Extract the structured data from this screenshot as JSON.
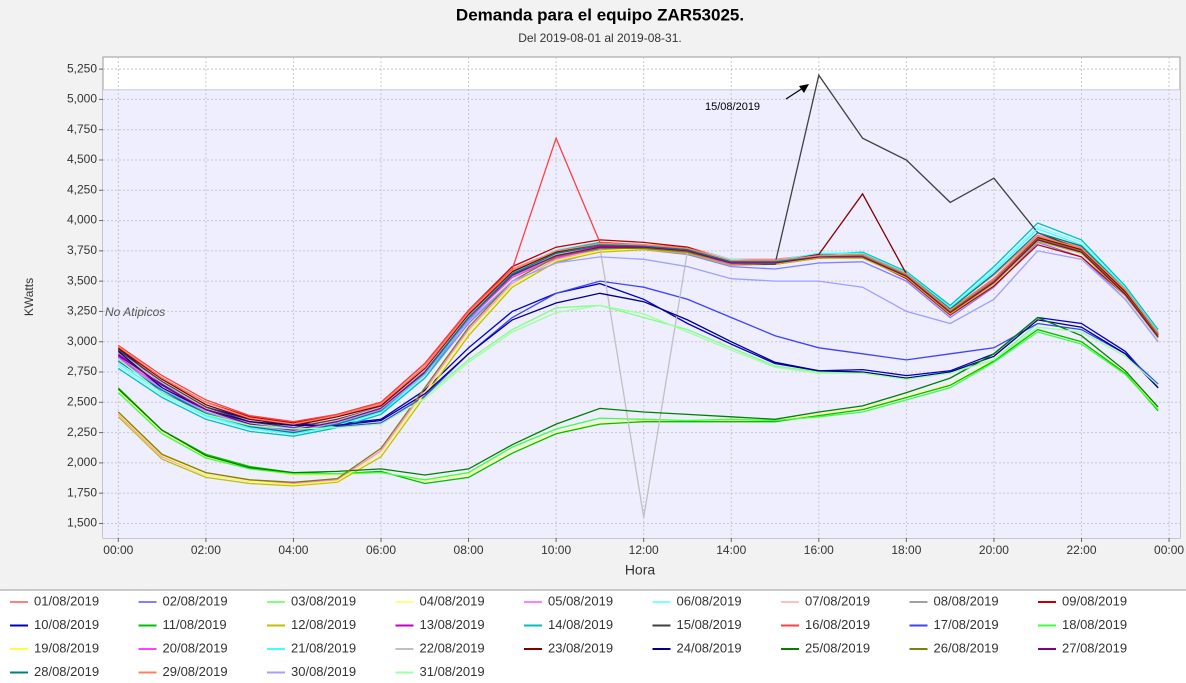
{
  "chart_data": {
    "type": "line",
    "title": "Demanda para el equipo ZAR53025.",
    "subtitle": "Del 2019-08-01 al 2019-08-31.",
    "x_label": "Hora",
    "y_label": "KWatts",
    "plot_label": "No Atipicos",
    "annotation": "15/08/2019",
    "grid": true,
    "log_scale": false,
    "shaded_max": 5080,
    "xlim": [
      -0.35,
      24.25
    ],
    "ylim": [
      1380,
      5350
    ],
    "xticks": [
      {
        "value": 0,
        "label": "00:00"
      },
      {
        "value": 2,
        "label": "02:00"
      },
      {
        "value": 4,
        "label": "04:00"
      },
      {
        "value": 6,
        "label": "06:00"
      },
      {
        "value": 8,
        "label": "08:00"
      },
      {
        "value": 10,
        "label": "10:00"
      },
      {
        "value": 12,
        "label": "12:00"
      },
      {
        "value": 14,
        "label": "14:00"
      },
      {
        "value": 16,
        "label": "16:00"
      },
      {
        "value": 18,
        "label": "18:00"
      },
      {
        "value": 20,
        "label": "20:00"
      },
      {
        "value": 22,
        "label": "22:00"
      },
      {
        "value": 24,
        "label": "00:00"
      }
    ],
    "yticks": [
      {
        "value": 1500,
        "label": "1,500"
      },
      {
        "value": 1750,
        "label": "1,750"
      },
      {
        "value": 2000,
        "label": "2,000"
      },
      {
        "value": 2250,
        "label": "2,250"
      },
      {
        "value": 2500,
        "label": "2,500"
      },
      {
        "value": 2750,
        "label": "2,750"
      },
      {
        "value": 3000,
        "label": "3,000"
      },
      {
        "value": 3250,
        "label": "3,250"
      },
      {
        "value": 3500,
        "label": "3,500"
      },
      {
        "value": 3750,
        "label": "3,750"
      },
      {
        "value": 4000,
        "label": "4,000"
      },
      {
        "value": 4250,
        "label": "4,250"
      },
      {
        "value": 4500,
        "label": "4,500"
      },
      {
        "value": 4750,
        "label": "4,750"
      },
      {
        "value": 5000,
        "label": "5,000"
      },
      {
        "value": 5250,
        "label": "5,250"
      }
    ],
    "x": [
      0,
      1,
      2,
      3,
      4,
      5,
      6,
      7,
      8,
      9,
      10,
      11,
      12,
      13,
      14,
      15,
      16,
      17,
      18,
      19,
      20,
      21,
      22,
      23,
      23.75
    ],
    "series": [
      {
        "name": "01/08/2019",
        "color": "#ff8080",
        "values": [
          2950,
          2680,
          2480,
          2360,
          2300,
          2380,
          2480,
          2800,
          3250,
          3600,
          3750,
          3800,
          3800,
          3780,
          3680,
          3680,
          3720,
          3730,
          3580,
          3280,
          3550,
          3880,
          3780,
          3420,
          3080
        ]
      },
      {
        "name": "02/08/2019",
        "color": "#8080ff",
        "values": [
          2880,
          2620,
          2420,
          2300,
          2250,
          2320,
          2420,
          2700,
          3150,
          3500,
          3650,
          3750,
          3760,
          3720,
          3620,
          3600,
          3650,
          3660,
          3500,
          3200,
          3450,
          3820,
          3700,
          3350,
          3000
        ]
      },
      {
        "name": "03/08/2019",
        "color": "#80ff80",
        "values": [
          2900,
          2600,
          2420,
          2330,
          2300,
          2300,
          2330,
          2550,
          2850,
          3100,
          3280,
          3300,
          3200,
          3100,
          2950,
          2800,
          2750,
          2750,
          2700,
          2750,
          2850,
          3150,
          3100,
          2900,
          2650
        ]
      },
      {
        "name": "04/08/2019",
        "color": "#ffff80",
        "values": [
          2600,
          2250,
          2050,
          1950,
          1900,
          1900,
          1920,
          1850,
          1900,
          2100,
          2250,
          2330,
          2350,
          2350,
          2350,
          2350,
          2400,
          2450,
          2550,
          2650,
          2850,
          3100,
          3000,
          2750,
          2450
        ]
      },
      {
        "name": "05/08/2019",
        "color": "#ff80ff",
        "values": [
          2400,
          2050,
          1900,
          1850,
          1830,
          1860,
          2100,
          2600,
          3100,
          3480,
          3680,
          3750,
          3760,
          3730,
          3640,
          3640,
          3690,
          3700,
          3540,
          3240,
          3490,
          3840,
          3740,
          3390,
          3040
        ]
      },
      {
        "name": "06/08/2019",
        "color": "#80ffff",
        "values": [
          2800,
          2560,
          2380,
          2280,
          2240,
          2300,
          2400,
          2720,
          3200,
          3580,
          3760,
          3820,
          3800,
          3770,
          3680,
          3660,
          3720,
          3720,
          3560,
          3300,
          3600,
          3950,
          3820,
          3450,
          3100
        ]
      },
      {
        "name": "07/08/2019",
        "color": "#ffc0c0",
        "values": [
          2920,
          2680,
          2470,
          2350,
          2300,
          2360,
          2460,
          2780,
          3230,
          3580,
          3740,
          3800,
          3790,
          3760,
          3660,
          3650,
          3700,
          3710,
          3540,
          3240,
          3500,
          3860,
          3760,
          3420,
          3060
        ]
      },
      {
        "name": "08/08/2019",
        "color": "#a0a0a0",
        "values": [
          2860,
          2600,
          2400,
          2290,
          2240,
          2310,
          2430,
          2740,
          3180,
          3540,
          3700,
          3760,
          3770,
          3740,
          3640,
          3640,
          3690,
          3690,
          3540,
          3230,
          3480,
          3840,
          3740,
          3380,
          3030
        ]
      },
      {
        "name": "09/08/2019",
        "color": "#c00000",
        "values": [
          2940,
          2700,
          2500,
          2380,
          2330,
          2400,
          2500,
          2820,
          3260,
          3620,
          3780,
          3840,
          3820,
          3780,
          3660,
          3640,
          3690,
          3700,
          3520,
          3220,
          3460,
          3800,
          3700,
          3380,
          3040
        ]
      },
      {
        "name": "10/08/2019",
        "color": "#0000c0",
        "values": [
          2950,
          2650,
          2460,
          2360,
          2320,
          2320,
          2360,
          2600,
          2950,
          3250,
          3400,
          3480,
          3350,
          3150,
          2980,
          2820,
          2760,
          2770,
          2720,
          2760,
          2900,
          3200,
          3150,
          2920,
          2620
        ]
      },
      {
        "name": "11/08/2019",
        "color": "#00c000",
        "values": [
          2620,
          2270,
          2070,
          1970,
          1920,
          1910,
          1930,
          1830,
          1880,
          2080,
          2240,
          2320,
          2340,
          2340,
          2340,
          2340,
          2390,
          2440,
          2540,
          2640,
          2840,
          3100,
          3000,
          2740,
          2430
        ]
      },
      {
        "name": "12/08/2019",
        "color": "#c0c000",
        "values": [
          2380,
          2030,
          1880,
          1830,
          1810,
          1840,
          2050,
          2550,
          3050,
          3450,
          3660,
          3740,
          3760,
          3730,
          3630,
          3640,
          3690,
          3690,
          3530,
          3230,
          3480,
          3830,
          3730,
          3380,
          3030
        ]
      },
      {
        "name": "13/08/2019",
        "color": "#c000c0",
        "values": [
          2900,
          2640,
          2440,
          2320,
          2270,
          2340,
          2440,
          2760,
          3210,
          3560,
          3720,
          3790,
          3790,
          3760,
          3660,
          3660,
          3710,
          3710,
          3560,
          3260,
          3520,
          3870,
          3760,
          3410,
          3060
        ]
      },
      {
        "name": "14/08/2019",
        "color": "#00c0c0",
        "values": [
          2780,
          2540,
          2360,
          2260,
          2220,
          2290,
          2400,
          2700,
          3180,
          3570,
          3750,
          3820,
          3800,
          3760,
          3660,
          3660,
          3720,
          3740,
          3580,
          3300,
          3620,
          3980,
          3840,
          3460,
          3100
        ]
      },
      {
        "name": "15/08/2019",
        "color": "#404040",
        "values": [
          2930,
          2670,
          2460,
          2340,
          2290,
          2360,
          2460,
          2760,
          3220,
          3560,
          3720,
          3780,
          3780,
          3740,
          3640,
          3640,
          5200,
          4680,
          4500,
          4150,
          4350,
          3900,
          3760,
          3420,
          3060
        ]
      },
      {
        "name": "16/08/2019",
        "color": "#ff4040",
        "values": [
          2970,
          2720,
          2520,
          2390,
          2340,
          2400,
          2500,
          2820,
          3260,
          3600,
          4680,
          3820,
          3800,
          3760,
          3660,
          3660,
          3700,
          3700,
          3540,
          3240,
          3500,
          3860,
          3760,
          3420,
          3060
        ]
      },
      {
        "name": "17/08/2019",
        "color": "#4040ff",
        "values": [
          2880,
          2580,
          2410,
          2320,
          2290,
          2300,
          2330,
          2550,
          2900,
          3200,
          3400,
          3500,
          3450,
          3350,
          3200,
          3050,
          2950,
          2900,
          2850,
          2900,
          2950,
          3150,
          3100,
          2900,
          2650
        ]
      },
      {
        "name": "18/08/2019",
        "color": "#40ff40",
        "values": [
          2580,
          2240,
          2040,
          1950,
          1910,
          1910,
          1920,
          1860,
          1920,
          2130,
          2280,
          2370,
          2360,
          2350,
          2360,
          2350,
          2380,
          2420,
          2520,
          2620,
          2830,
          3080,
          2980,
          2730,
          2440
        ]
      },
      {
        "name": "19/08/2019",
        "color": "#ffff40",
        "values": [
          2410,
          2060,
          1900,
          1850,
          1820,
          1850,
          2080,
          2580,
          3080,
          3470,
          3670,
          3750,
          3770,
          3740,
          3640,
          3650,
          3700,
          3700,
          3540,
          3240,
          3500,
          3850,
          3750,
          3400,
          3050
        ]
      },
      {
        "name": "20/08/2019",
        "color": "#ff40ff",
        "values": [
          2870,
          2620,
          2420,
          2310,
          2260,
          2330,
          2440,
          2740,
          3190,
          3530,
          3690,
          3770,
          3780,
          3740,
          3640,
          3650,
          3700,
          3700,
          3550,
          3250,
          3510,
          3860,
          3760,
          3400,
          3050
        ]
      },
      {
        "name": "21/08/2019",
        "color": "#40ffff",
        "values": [
          2820,
          2580,
          2390,
          2290,
          2240,
          2310,
          2420,
          2730,
          3200,
          3560,
          3740,
          3810,
          3800,
          3770,
          3670,
          3670,
          3730,
          3730,
          3570,
          3280,
          3580,
          3930,
          3800,
          3440,
          3080
        ]
      },
      {
        "name": "22/08/2019",
        "color": "#c0c0c0",
        "values": [
          2910,
          2660,
          2450,
          2330,
          2280,
          2350,
          2460,
          2760,
          3210,
          3560,
          3720,
          3780,
          1550,
          3750,
          3650,
          3650,
          3700,
          3700,
          3550,
          3250,
          3500,
          3850,
          3750,
          3400,
          3050
        ]
      },
      {
        "name": "23/08/2019",
        "color": "#800000",
        "values": [
          2950,
          2690,
          2480,
          2360,
          2310,
          2380,
          2470,
          2780,
          3230,
          3580,
          3740,
          3800,
          3790,
          3760,
          3660,
          3660,
          3720,
          4220,
          3560,
          3260,
          3520,
          3860,
          3760,
          3410,
          3060
        ]
      },
      {
        "name": "24/08/2019",
        "color": "#000080",
        "values": [
          2920,
          2620,
          2440,
          2340,
          2310,
          2310,
          2350,
          2570,
          2900,
          3180,
          3320,
          3400,
          3330,
          3180,
          3000,
          2830,
          2760,
          2750,
          2700,
          2750,
          2880,
          3180,
          3120,
          2900,
          2620
        ]
      },
      {
        "name": "25/08/2019",
        "color": "#008000",
        "values": [
          2610,
          2270,
          2060,
          1960,
          1920,
          1930,
          1950,
          1900,
          1950,
          2150,
          2320,
          2450,
          2420,
          2400,
          2380,
          2360,
          2420,
          2470,
          2580,
          2700,
          2900,
          3200,
          3050,
          2760,
          2460
        ]
      },
      {
        "name": "26/08/2019",
        "color": "#808000",
        "values": [
          2420,
          2070,
          1920,
          1860,
          1840,
          1870,
          2120,
          2620,
          3120,
          3500,
          3700,
          3770,
          3770,
          3740,
          3650,
          3650,
          3700,
          3710,
          3550,
          3250,
          3500,
          3850,
          3750,
          3400,
          3050
        ]
      },
      {
        "name": "27/08/2019",
        "color": "#800080",
        "values": [
          2890,
          2640,
          2440,
          2320,
          2270,
          2340,
          2450,
          2750,
          3200,
          3550,
          3710,
          3780,
          3780,
          3750,
          3650,
          3650,
          3700,
          3700,
          3540,
          3240,
          3490,
          3840,
          3740,
          3390,
          3040
        ]
      },
      {
        "name": "28/08/2019",
        "color": "#008080",
        "values": [
          2840,
          2600,
          2410,
          2300,
          2250,
          2320,
          2430,
          2740,
          3200,
          3560,
          3730,
          3800,
          3790,
          3760,
          3660,
          3660,
          3710,
          3720,
          3560,
          3270,
          3560,
          3900,
          3790,
          3430,
          3070
        ]
      },
      {
        "name": "29/08/2019",
        "color": "#ff8060",
        "values": [
          2960,
          2700,
          2500,
          2370,
          2320,
          2390,
          2490,
          2790,
          3240,
          3590,
          3750,
          3810,
          3800,
          3770,
          3670,
          3670,
          3710,
          3720,
          3560,
          3260,
          3520,
          3870,
          3770,
          3430,
          3070
        ]
      },
      {
        "name": "30/08/2019",
        "color": "#a0a0ff",
        "values": [
          2850,
          2610,
          2420,
          2310,
          2260,
          2330,
          2440,
          2730,
          3170,
          3500,
          3650,
          3700,
          3680,
          3620,
          3520,
          3500,
          3500,
          3450,
          3250,
          3150,
          3350,
          3750,
          3680,
          3350,
          3000
        ]
      },
      {
        "name": "31/08/2019",
        "color": "#a0ffa0",
        "values": [
          2860,
          2570,
          2400,
          2310,
          2280,
          2290,
          2320,
          2530,
          2830,
          3080,
          3240,
          3300,
          3230,
          3080,
          2930,
          2790,
          2740,
          2740,
          2690,
          2740,
          2850,
          3120,
          3080,
          2880,
          2640
        ]
      }
    ]
  }
}
